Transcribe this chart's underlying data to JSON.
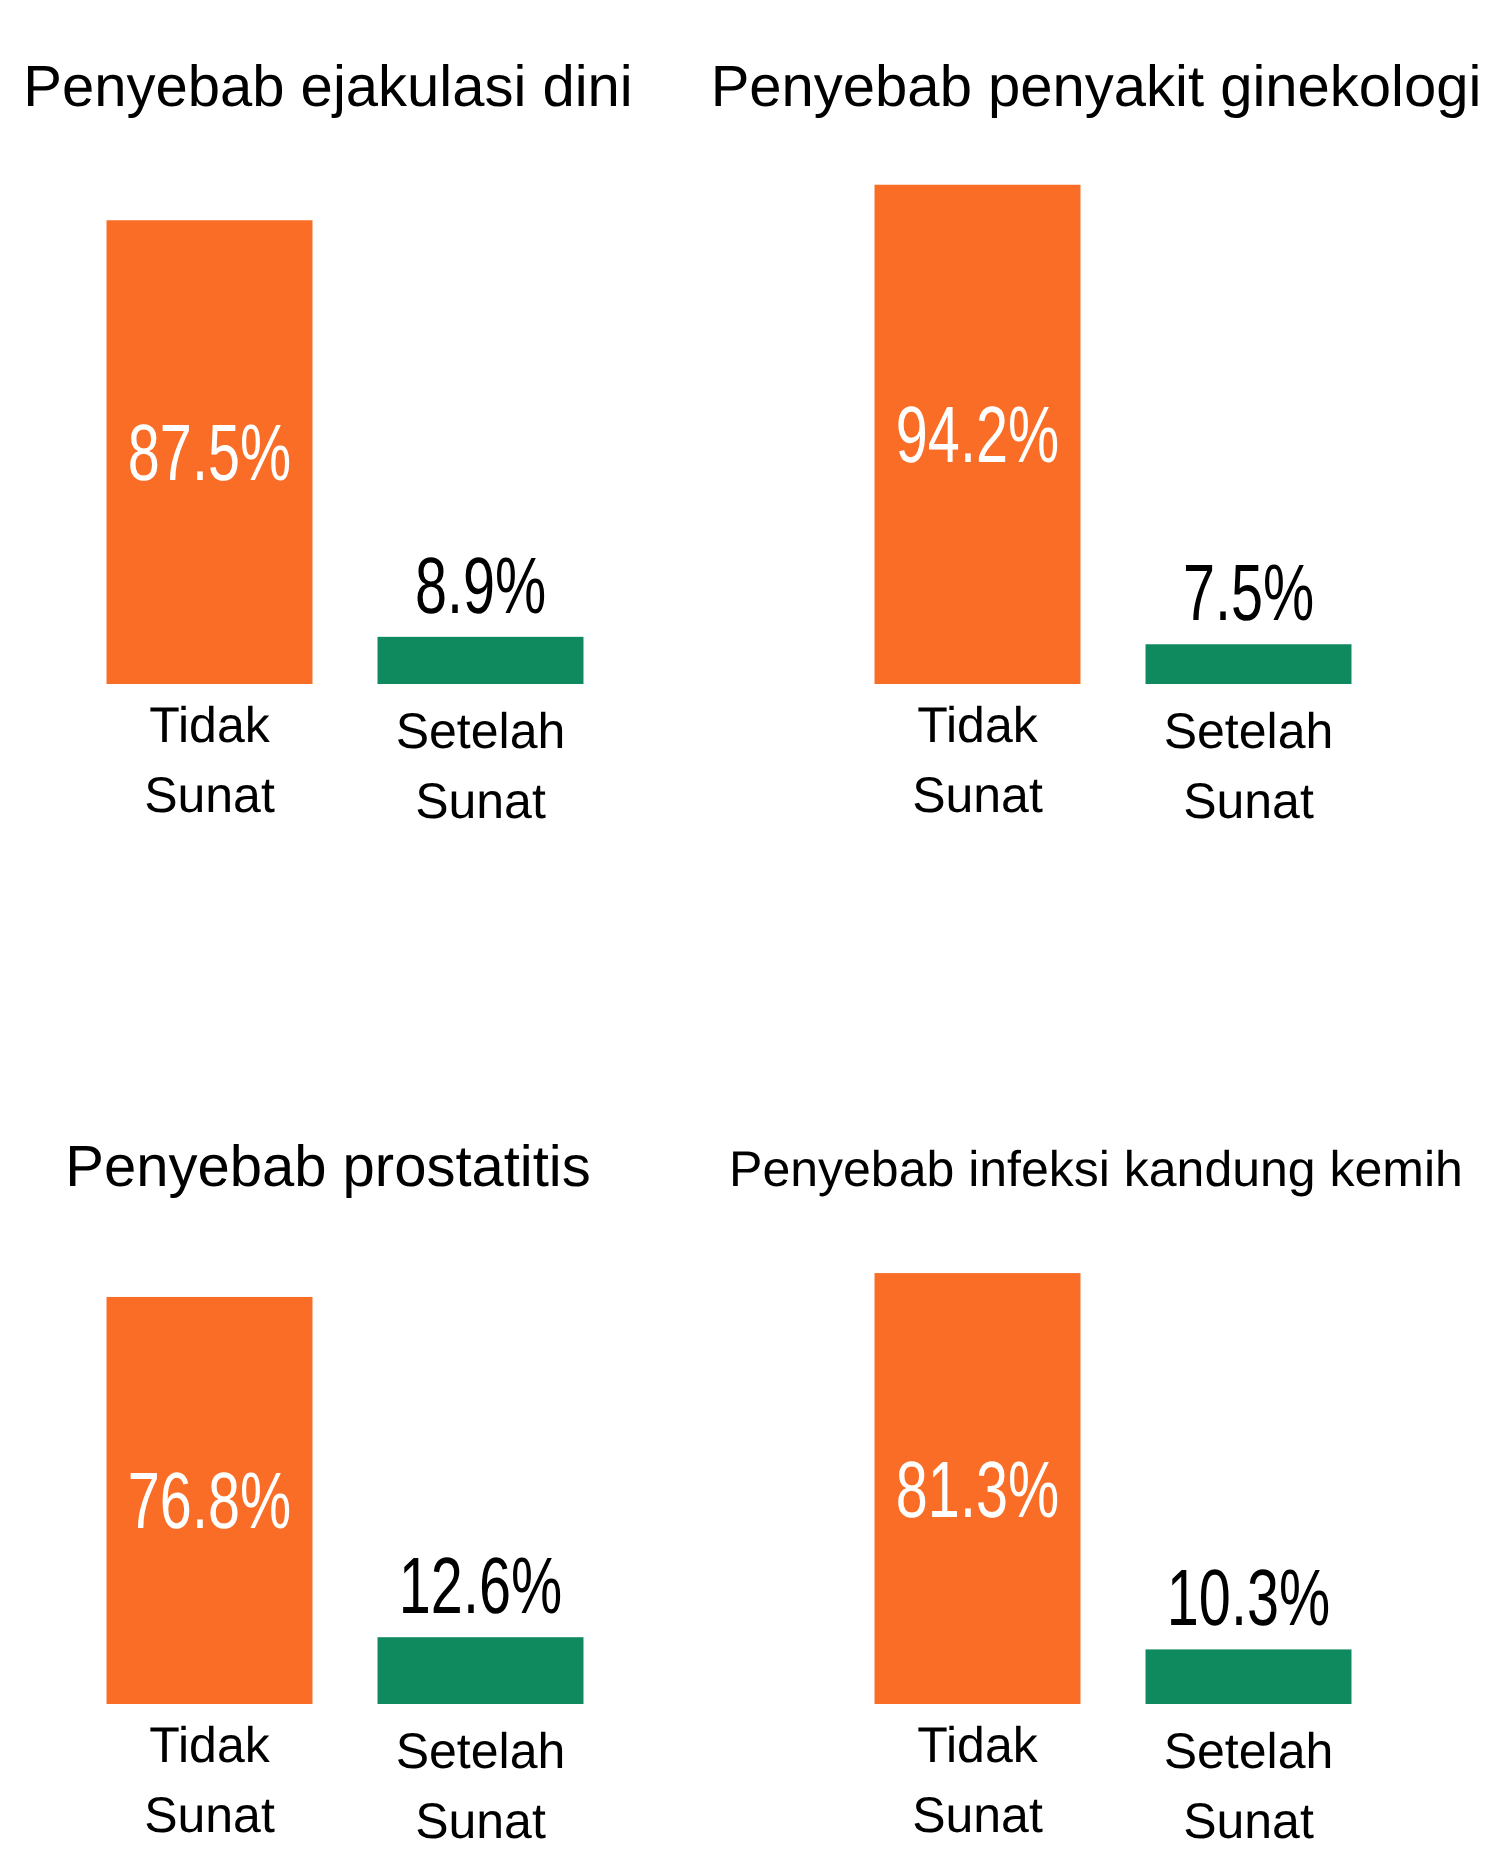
{
  "chart_data": [
    {
      "type": "bar",
      "title": "Penyebab ejakulasi dini",
      "categories": [
        "Tidak Sunat",
        "Setelah Sunat"
      ],
      "values": [
        87.5,
        8.9
      ],
      "colors": [
        "#f96d26",
        "#0f8a5f"
      ],
      "value_labels": [
        "87.5%",
        "8.9%"
      ]
    },
    {
      "type": "bar",
      "title": "Penyebab penyakit ginekologi",
      "categories": [
        "Tidak Sunat",
        "Setelah Sunat"
      ],
      "values": [
        94.2,
        7.5
      ],
      "colors": [
        "#f96d26",
        "#0f8a5f"
      ],
      "value_labels": [
        "94.2%",
        "7.5%"
      ]
    },
    {
      "type": "bar",
      "title": "Penyebab prostatitis",
      "categories": [
        "Tidak Sunat",
        "Setelah Sunat"
      ],
      "values": [
        76.8,
        12.6
      ],
      "colors": [
        "#f96d26",
        "#0f8a5f"
      ],
      "value_labels": [
        "76.8%",
        "12.6%"
      ]
    },
    {
      "type": "bar",
      "title": "Penyebab infeksi kandung kemih",
      "categories": [
        "Tidak Sunat",
        "Setelah Sunat"
      ],
      "values": [
        81.3,
        10.3
      ],
      "colors": [
        "#f96d26",
        "#0f8a5f"
      ],
      "value_labels": [
        "81.3%",
        "10.3%"
      ]
    }
  ]
}
